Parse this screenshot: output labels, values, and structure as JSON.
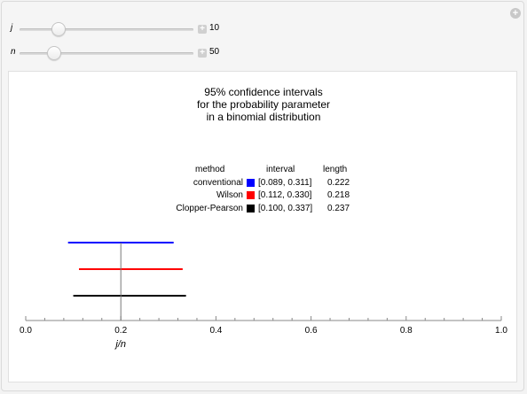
{
  "controls": [
    {
      "label": "j",
      "value": "10",
      "fraction": 0.2
    },
    {
      "label": "n",
      "value": "50",
      "fraction": 0.18
    }
  ],
  "title_lines": [
    "95% confidence intervals",
    "for the probability parameter",
    "in a binomial distribution"
  ],
  "table": {
    "headers": {
      "method": "method",
      "interval": "interval",
      "length": "length"
    },
    "rows": [
      {
        "method": "conventional",
        "color": "#0000ff",
        "interval": "[0.089, 0.311]",
        "length": "0.222"
      },
      {
        "method": "Wilson",
        "color": "#ff0000",
        "interval": "[0.112, 0.330]",
        "length": "0.218"
      },
      {
        "method": "Clopper-Pearson",
        "color": "#000000",
        "interval": "[0.100, 0.337]",
        "length": "0.237"
      }
    ]
  },
  "chart_data": {
    "type": "interval",
    "xlabel": "j/n",
    "xlim": [
      0,
      1
    ],
    "xticks": [
      "0.0",
      "0.2",
      "0.4",
      "0.6",
      "0.8",
      "1.0"
    ],
    "point_estimate": 0.2,
    "series": [
      {
        "name": "conventional",
        "color": "#0000ff",
        "lower": 0.089,
        "upper": 0.311
      },
      {
        "name": "Wilson",
        "color": "#ff0000",
        "lower": 0.112,
        "upper": 0.33
      },
      {
        "name": "Clopper-Pearson",
        "color": "#000000",
        "lower": 0.1,
        "upper": 0.337
      }
    ]
  }
}
